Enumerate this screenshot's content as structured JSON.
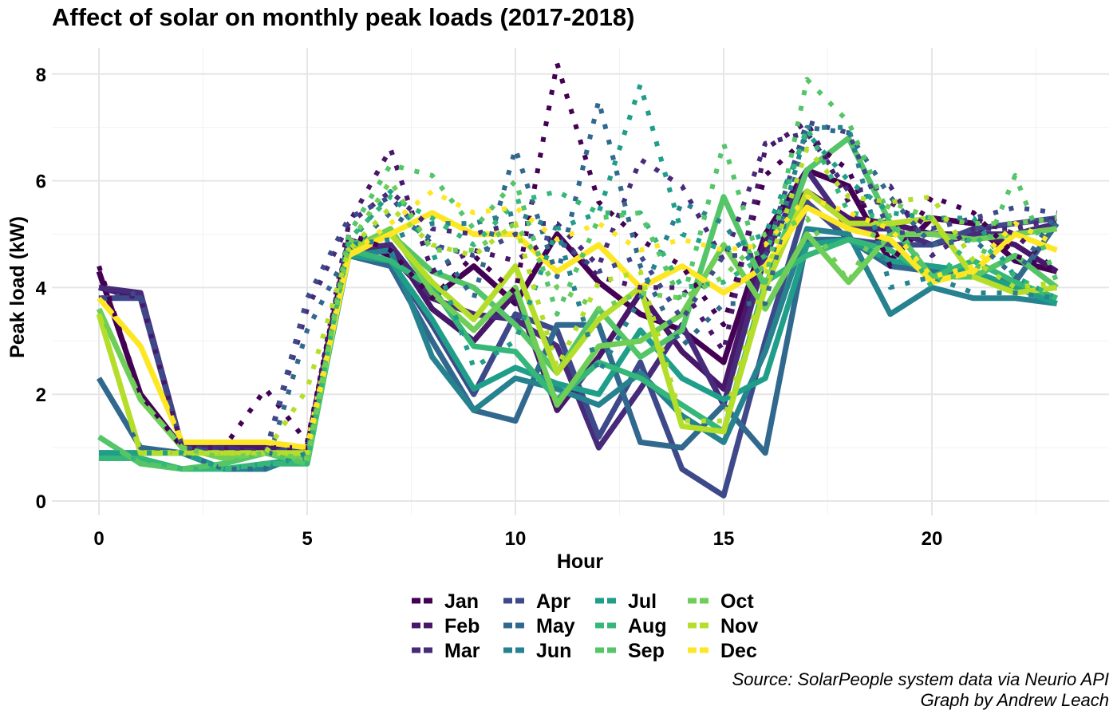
{
  "colors": {
    "months": [
      "#440154",
      "#481769",
      "#472a7a",
      "#3e4989",
      "#31688e",
      "#26828e",
      "#1f9e89",
      "#35b779",
      "#54c568",
      "#6ece58",
      "#b5de2b",
      "#fde725"
    ]
  },
  "chart_data": {
    "type": "line",
    "title": "Affect of solar on monthly peak loads (2017-2018)",
    "xlabel": "Hour",
    "ylabel": "Peak load (kW)",
    "xlim": [
      0,
      23
    ],
    "ylim": [
      0,
      8.2
    ],
    "xticks": [
      0,
      5,
      10,
      15,
      20
    ],
    "yticks": [
      0,
      2,
      4,
      6,
      8
    ],
    "grid": true,
    "legend_position": "bottom",
    "x": [
      0,
      1,
      2,
      3,
      4,
      5,
      6,
      7,
      8,
      9,
      10,
      11,
      12,
      13,
      14,
      15,
      16,
      17,
      18,
      19,
      20,
      21,
      22,
      23
    ],
    "series": [
      {
        "name": "Jan",
        "values": [
          4.4,
          2.0,
          1.0,
          1.0,
          2.1,
          1.1,
          5.0,
          4.7,
          3.8,
          4.6,
          3.9,
          8.2,
          5.6,
          4.9,
          4.4,
          3.3,
          6.1,
          6.8,
          6.2,
          4.4,
          5.7,
          5.4,
          4.6,
          4.3
        ]
      },
      {
        "name": "Feb",
        "values": [
          4.0,
          3.8,
          1.0,
          1.0,
          1.0,
          1.0,
          5.2,
          6.6,
          4.3,
          4.7,
          4.5,
          5.0,
          4.2,
          4.0,
          4.0,
          2.8,
          6.6,
          7.1,
          5.6,
          5.6,
          5.1,
          5.3,
          5.0,
          4.3
        ]
      },
      {
        "name": "Mar",
        "values": [
          4.0,
          3.9,
          1.0,
          1.0,
          0.9,
          3.6,
          5.2,
          5.8,
          5.1,
          5.0,
          5.2,
          5.2,
          4.4,
          6.4,
          5.9,
          4.5,
          6.7,
          6.9,
          5.8,
          5.9,
          4.6,
          5.1,
          5.1,
          5.3
        ]
      },
      {
        "name": "Apr",
        "values": [
          3.8,
          3.9,
          1.0,
          0.9,
          0.9,
          3.8,
          5.3,
          5.7,
          4.8,
          4.6,
          5.0,
          4.9,
          4.3,
          4.6,
          3.4,
          4.6,
          4.6,
          7.1,
          6.9,
          5.0,
          5.1,
          5.3,
          5.5,
          5.4
        ]
      },
      {
        "name": "May",
        "values": [
          2.3,
          1.0,
          0.9,
          0.6,
          0.6,
          3.2,
          4.7,
          5.4,
          4.9,
          3.8,
          6.6,
          4.2,
          7.5,
          4.4,
          2.9,
          3.7,
          3.7,
          7.0,
          6.9,
          5.7,
          4.8,
          4.9,
          4.2,
          5.4
        ]
      },
      {
        "name": "Jun",
        "values": [
          0.9,
          0.9,
          0.9,
          0.6,
          0.6,
          0.9,
          4.8,
          4.9,
          5.2,
          5.2,
          5.4,
          5.1,
          2.4,
          3.8,
          5.6,
          5.2,
          4.1,
          7.0,
          7.0,
          4.0,
          4.2,
          3.9,
          3.9,
          3.8
        ]
      },
      {
        "name": "Jul",
        "values": [
          0.9,
          0.9,
          0.9,
          0.6,
          0.7,
          0.8,
          4.8,
          5.8,
          4.7,
          2.5,
          3.0,
          5.1,
          5.4,
          7.8,
          5.0,
          4.7,
          5.0,
          6.9,
          6.0,
          5.4,
          5.3,
          5.3,
          4.2,
          3.8
        ]
      },
      {
        "name": "Aug",
        "values": [
          0.8,
          0.8,
          0.6,
          0.6,
          0.7,
          0.7,
          4.9,
          5.7,
          5.3,
          4.8,
          5.6,
          5.8,
          5.4,
          5.4,
          4.0,
          4.1,
          4.6,
          7.0,
          5.4,
          5.3,
          4.0,
          5.0,
          4.2,
          3.8
        ]
      },
      {
        "name": "Sep",
        "values": [
          1.2,
          0.7,
          0.6,
          0.7,
          0.9,
          0.7,
          5.0,
          6.3,
          6.1,
          5.1,
          6.0,
          3.5,
          5.3,
          5.4,
          3.7,
          6.7,
          4.1,
          7.9,
          7.1,
          5.3,
          4.2,
          4.2,
          6.1,
          4.1
        ]
      },
      {
        "name": "Oct",
        "values": [
          3.6,
          1.9,
          1.0,
          0.8,
          0.9,
          0.8,
          4.8,
          6.0,
          4.7,
          4.7,
          5.2,
          4.0,
          3.6,
          3.9,
          3.8,
          4.2,
          5.0,
          5.3,
          4.1,
          5.6,
          5.3,
          5.2,
          5.2,
          5.3
        ]
      },
      {
        "name": "Nov",
        "values": [
          3.5,
          0.9,
          0.9,
          0.9,
          0.9,
          2.1,
          4.7,
          5.5,
          4.8,
          4.6,
          5.2,
          2.5,
          4.1,
          4.3,
          1.5,
          1.5,
          4.2,
          6.6,
          5.7,
          5.6,
          5.7,
          4.5,
          4.0,
          4.1
        ]
      },
      {
        "name": "Dec",
        "values": [
          3.8,
          2.9,
          1.1,
          1.1,
          1.1,
          1.0,
          4.6,
          5.2,
          5.8,
          5.4,
          5.5,
          4.9,
          5.2,
          4.7,
          4.9,
          4.7,
          4.8,
          5.7,
          5.4,
          5.1,
          4.2,
          4.4,
          5.2,
          4.8
        ]
      },
      {
        "name": "Jan",
        "values": [
          4.3,
          2.0,
          1.0,
          1.0,
          1.0,
          1.0,
          4.9,
          4.6,
          3.8,
          4.4,
          3.7,
          5.0,
          4.1,
          3.5,
          3.2,
          2.6,
          5.0,
          6.2,
          5.9,
          4.5,
          5.3,
          5.2,
          4.5,
          4.3
        ]
      },
      {
        "name": "Feb",
        "values": [
          4.0,
          3.8,
          1.0,
          1.0,
          1.0,
          1.0,
          4.7,
          4.8,
          3.6,
          3.0,
          3.9,
          1.7,
          2.7,
          3.9,
          2.8,
          2.1,
          4.9,
          5.8,
          5.3,
          5.2,
          5.0,
          5.0,
          4.8,
          4.3
        ]
      },
      {
        "name": "Mar",
        "values": [
          4.0,
          3.9,
          1.0,
          1.0,
          0.9,
          1.0,
          4.7,
          4.8,
          3.8,
          3.5,
          3.4,
          2.9,
          1.0,
          2.1,
          3.3,
          1.8,
          4.6,
          6.2,
          5.1,
          5.1,
          4.8,
          5.0,
          5.0,
          5.2
        ]
      },
      {
        "name": "Apr",
        "values": [
          3.8,
          3.8,
          1.0,
          0.9,
          0.9,
          1.0,
          4.7,
          4.5,
          3.3,
          2.0,
          3.5,
          3.2,
          1.2,
          2.6,
          0.6,
          0.1,
          3.0,
          5.6,
          4.9,
          4.8,
          4.8,
          5.1,
          5.2,
          5.3
        ]
      },
      {
        "name": "May",
        "values": [
          2.3,
          1.0,
          0.9,
          0.6,
          0.6,
          0.9,
          4.6,
          4.4,
          3.0,
          1.7,
          1.5,
          3.3,
          3.3,
          1.1,
          1.0,
          1.8,
          0.9,
          4.9,
          4.9,
          4.4,
          4.3,
          4.2,
          4.1,
          5.2
        ]
      },
      {
        "name": "Jun",
        "values": [
          0.9,
          0.9,
          0.9,
          0.6,
          0.6,
          0.9,
          4.6,
          4.7,
          2.7,
          1.7,
          2.3,
          2.1,
          1.8,
          2.4,
          1.6,
          1.1,
          2.8,
          5.1,
          5.0,
          3.5,
          4.0,
          3.8,
          3.8,
          3.7
        ]
      },
      {
        "name": "Jul",
        "values": [
          0.9,
          0.9,
          0.9,
          0.6,
          0.7,
          0.8,
          4.6,
          4.5,
          3.4,
          2.1,
          2.5,
          2.2,
          2.0,
          3.2,
          2.3,
          1.9,
          2.3,
          4.8,
          4.9,
          4.5,
          4.4,
          4.3,
          4.0,
          3.7
        ]
      },
      {
        "name": "Aug",
        "values": [
          0.8,
          0.8,
          0.6,
          0.6,
          0.7,
          0.7,
          4.7,
          4.5,
          4.0,
          2.9,
          2.8,
          1.9,
          2.6,
          2.3,
          1.8,
          1.3,
          4.1,
          4.6,
          4.9,
          4.7,
          4.2,
          4.5,
          4.1,
          3.8
        ]
      },
      {
        "name": "Sep",
        "values": [
          1.2,
          0.7,
          0.6,
          0.7,
          0.9,
          0.7,
          4.8,
          5.0,
          4.3,
          4.0,
          3.3,
          2.4,
          3.6,
          2.7,
          3.2,
          5.7,
          4.0,
          6.2,
          6.8,
          5.2,
          4.2,
          4.2,
          4.6,
          4.0
        ]
      },
      {
        "name": "Oct",
        "values": [
          3.6,
          1.9,
          1.0,
          0.8,
          0.9,
          0.8,
          4.7,
          5.1,
          3.9,
          3.2,
          4.0,
          1.8,
          2.9,
          3.0,
          3.5,
          4.8,
          3.6,
          5.0,
          4.1,
          5.0,
          5.0,
          4.9,
          5.0,
          5.1
        ]
      },
      {
        "name": "Nov",
        "values": [
          3.5,
          0.9,
          0.9,
          0.9,
          0.9,
          0.9,
          4.7,
          5.0,
          4.1,
          3.4,
          4.4,
          2.4,
          3.4,
          4.0,
          1.4,
          1.3,
          4.0,
          5.8,
          5.2,
          5.2,
          5.3,
          4.2,
          3.9,
          4.0
        ]
      },
      {
        "name": "Dec",
        "values": [
          3.8,
          2.9,
          1.1,
          1.1,
          1.1,
          1.0,
          4.6,
          5.0,
          5.4,
          5.0,
          5.0,
          4.3,
          4.8,
          4.0,
          4.4,
          3.9,
          4.4,
          5.5,
          5.1,
          4.9,
          4.1,
          4.3,
          5.0,
          4.7
        ]
      }
    ],
    "legend": [
      {
        "label": "Jan"
      },
      {
        "label": "Feb"
      },
      {
        "label": "Mar"
      },
      {
        "label": "Apr"
      },
      {
        "label": "May"
      },
      {
        "label": "Jun"
      },
      {
        "label": "Jul"
      },
      {
        "label": "Aug"
      },
      {
        "label": "Sep"
      },
      {
        "label": "Oct"
      },
      {
        "label": "Nov"
      },
      {
        "label": "Dec"
      }
    ]
  },
  "captions": {
    "source": "Source: SolarPeople system data via Neurio API",
    "credit": "Graph by Andrew Leach"
  }
}
